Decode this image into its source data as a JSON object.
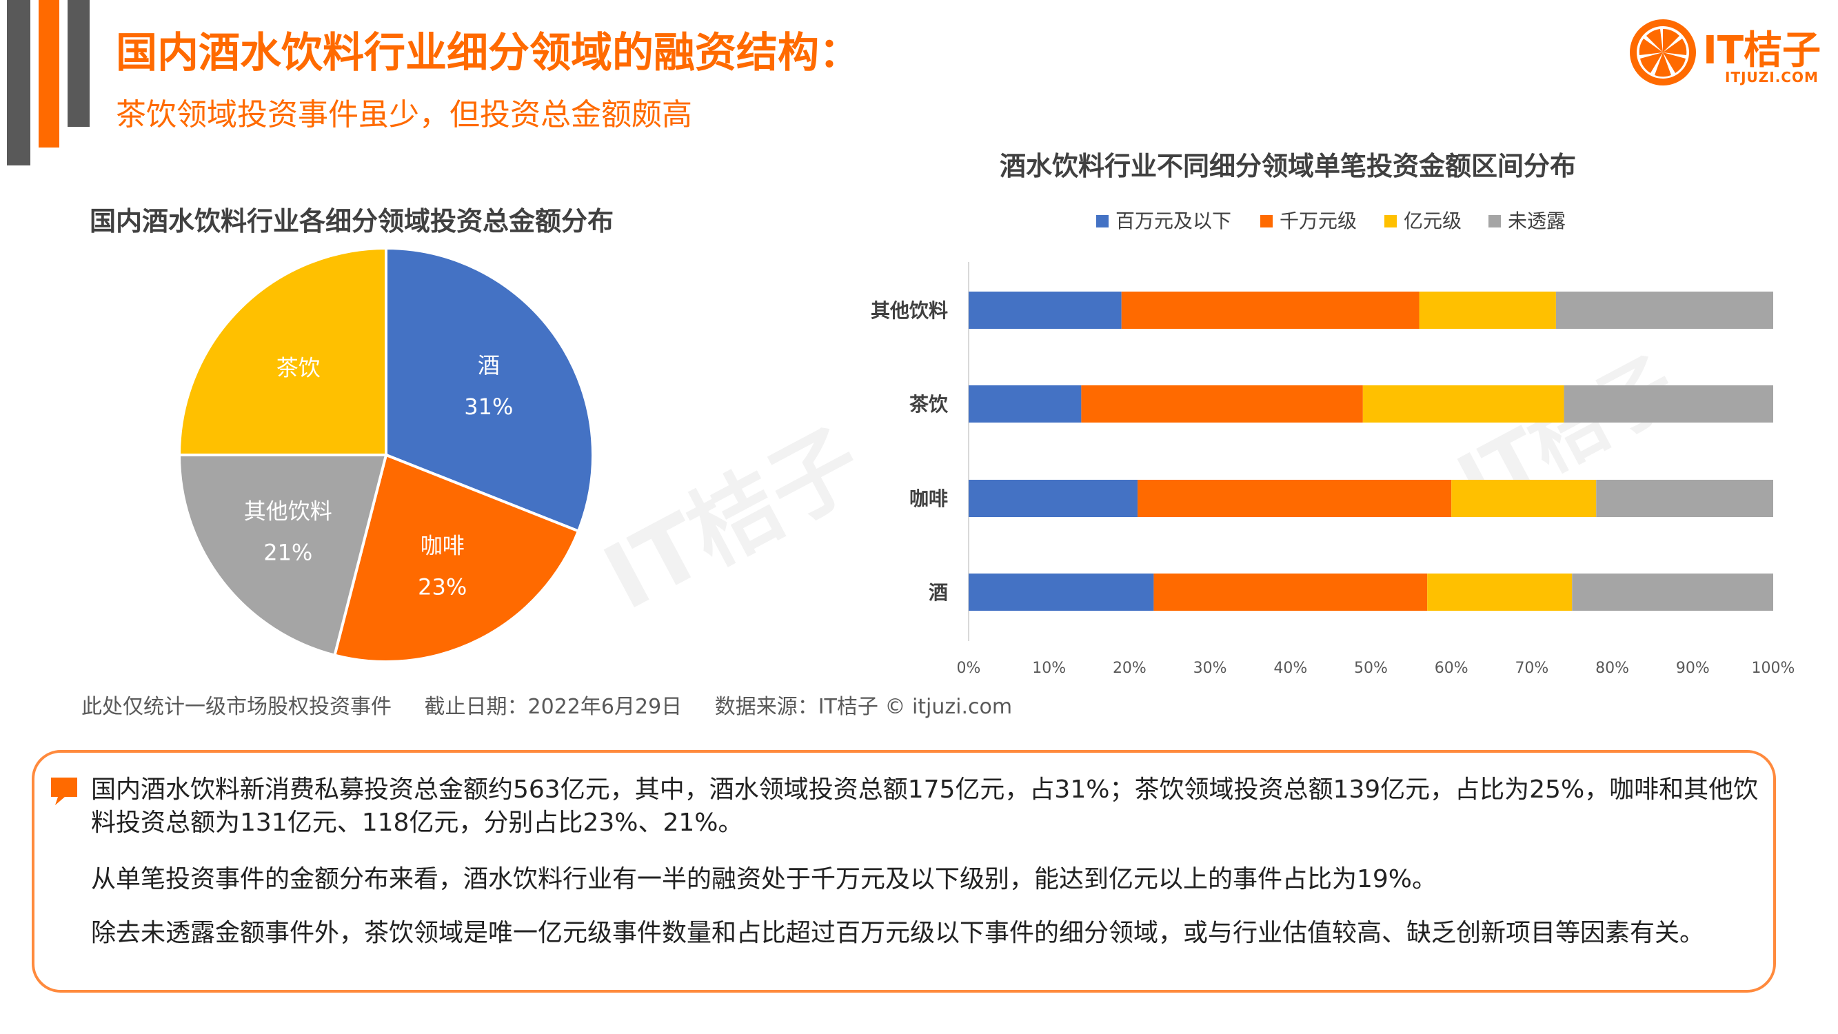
{
  "header": {
    "title": "国内酒水饮料行业细分领域的融资结构：",
    "subtitle": "茶饮领域投资事件虽少，但投资总金额颇高"
  },
  "logo": {
    "text": "IT桔子",
    "sub": "ITJUZI.COM"
  },
  "watermark": "IT桔子",
  "colors": {
    "accent": "#ff6a00",
    "dark_bar": "#595959",
    "blue": "#4472c4",
    "orange": "#ff6a00",
    "yellow": "#ffc000",
    "gray": "#a5a5a5"
  },
  "chart_data": [
    {
      "type": "pie",
      "title": "国内酒水饮料行业各细分领域投资总金额分布",
      "slices": [
        {
          "name": "酒",
          "value": 31,
          "label": "31%",
          "color": "#4472c4"
        },
        {
          "name": "咖啡",
          "value": 23,
          "label": "23%",
          "color": "#ff6a00"
        },
        {
          "name": "其他饮料",
          "value": 21,
          "label": "21%",
          "color": "#a5a5a5"
        },
        {
          "name": "茶饮",
          "value": 25,
          "label": "",
          "color": "#ffc000"
        }
      ]
    },
    {
      "type": "bar",
      "orientation": "horizontal",
      "stacked": "percent",
      "title": "酒水饮料行业不同细分领域单笔投资金额区间分布",
      "categories": [
        "其他饮料",
        "茶饮",
        "咖啡",
        "酒"
      ],
      "series": [
        {
          "name": "百万元及以下",
          "color": "#4472c4",
          "values": [
            19,
            14,
            21,
            23
          ]
        },
        {
          "name": "千万元级",
          "color": "#ff6a00",
          "values": [
            37,
            35,
            39,
            34
          ]
        },
        {
          "name": "亿元级",
          "color": "#ffc000",
          "values": [
            17,
            25,
            18,
            18
          ]
        },
        {
          "name": "未透露",
          "color": "#a5a5a5",
          "values": [
            27,
            26,
            22,
            25
          ]
        }
      ],
      "xticks": [
        "0%",
        "10%",
        "20%",
        "30%",
        "40%",
        "50%",
        "60%",
        "70%",
        "80%",
        "90%",
        "100%"
      ],
      "xlim": [
        0,
        100
      ],
      "legend": "top"
    }
  ],
  "footnote": {
    "scope": "此处仅统计一级市场股权投资事件",
    "date": "截止日期：2022年6月29日",
    "source": "数据来源：IT桔子 © itjuzi.com"
  },
  "summary": {
    "p1": "国内酒水饮料新消费私募投资总金额约563亿元，其中，酒水领域投资总额175亿元，占31%；茶饮领域投资总额139亿元，占比为25%，咖啡和其他饮料投资总额为131亿元、118亿元，分别占比23%、21%。",
    "p2": "从单笔投资事件的金额分布来看，酒水饮料行业有一半的融资处于千万元及以下级别，能达到亿元以上的事件占比为19%。",
    "p3": "除去未透露金额事件外，茶饮领域是唯一亿元级事件数量和占比超过百万元级以下事件的细分领域，或与行业估值较高、缺乏创新项目等因素有关。"
  }
}
